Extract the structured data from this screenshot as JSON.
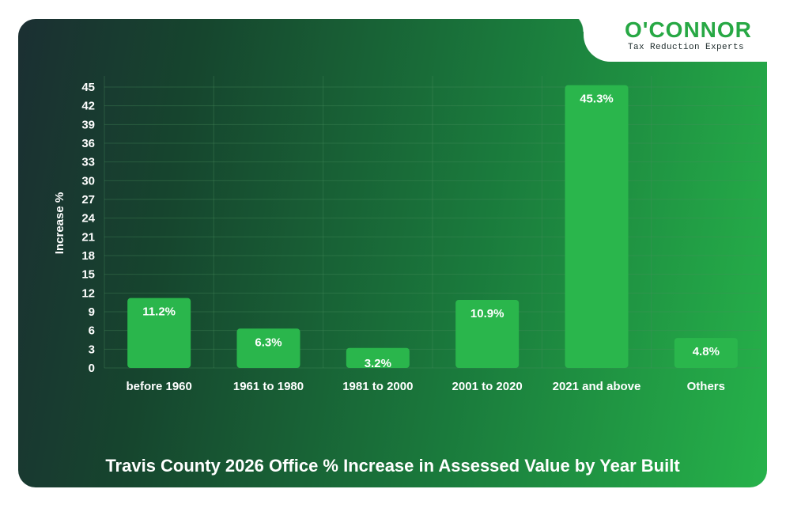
{
  "logo": {
    "title": "O'CONNOR",
    "subtitle": "Tax Reduction Experts"
  },
  "colors": {
    "accent": "#27a844",
    "bar": "#2ab64c",
    "grid": "#4a8f5f"
  },
  "chart_data": {
    "type": "bar",
    "title": "Travis County 2026 Office % Increase in Assessed Value by Year Built",
    "xlabel": "",
    "ylabel": "Increase %",
    "categories": [
      "before 1960",
      "1961 to 1980",
      "1981 to 2000",
      "2001 to 2020",
      "2021 and above",
      "Others"
    ],
    "values": [
      11.2,
      6.3,
      3.2,
      10.9,
      45.3,
      4.8
    ],
    "value_labels": [
      "11.2%",
      "6.3%",
      "3.2%",
      "10.9%",
      "45.3%",
      "4.8%"
    ],
    "ylim": [
      0,
      45
    ],
    "yticks": [
      0,
      3,
      6,
      9,
      12,
      15,
      18,
      21,
      24,
      27,
      30,
      33,
      36,
      39,
      42,
      45
    ],
    "grid": true
  }
}
